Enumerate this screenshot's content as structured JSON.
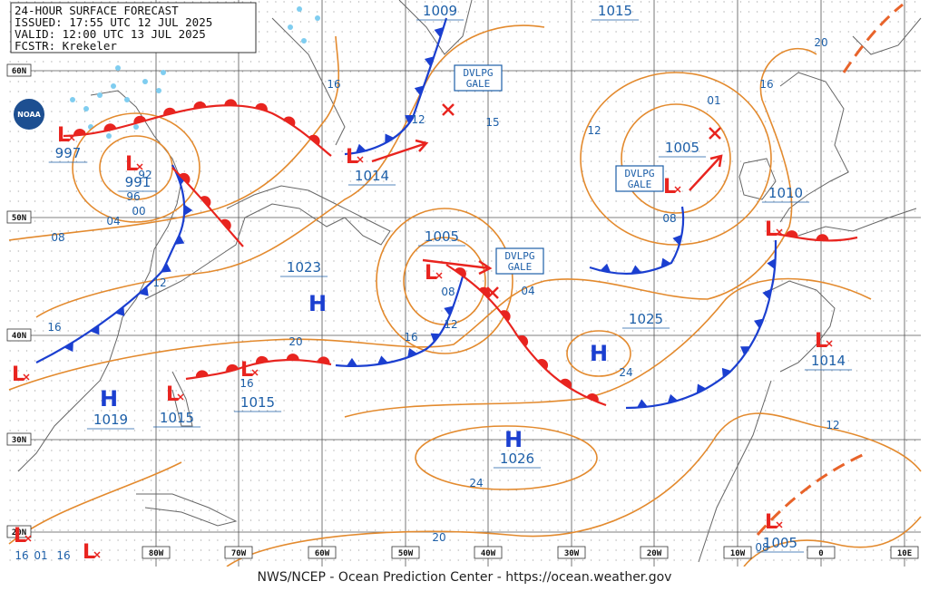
{
  "header": {
    "title": "24-HOUR SURFACE FORECAST",
    "issued": "ISSUED: 17:55 UTC 12 JUL 2025",
    "valid": "VALID: 12:00 UTC 13 JUL 2025",
    "forecaster": "FCSTR: Krekeler"
  },
  "logo": "NOAA",
  "latitude_labels": [
    "60N",
    "50N",
    "40N",
    "30N",
    "20N"
  ],
  "longitude_labels": [
    "80W",
    "70W",
    "60W",
    "50W",
    "40W",
    "30W",
    "20W",
    "10W",
    "0",
    "10E"
  ],
  "highs": [
    {
      "symbol": "H",
      "pressure": "1023"
    },
    {
      "symbol": "H",
      "pressure": "1025"
    },
    {
      "symbol": "H",
      "pressure": "1019"
    },
    {
      "symbol": "H",
      "pressure": "1026"
    }
  ],
  "lows": [
    {
      "symbol": "L",
      "pressure": "997"
    },
    {
      "symbol": "L",
      "pressure": "991"
    },
    {
      "symbol": "L",
      "pressure": "1014"
    },
    {
      "symbol": "L",
      "pressure": "1005"
    },
    {
      "symbol": "L",
      "pressure": "1005"
    },
    {
      "symbol": "L",
      "pressure": "1010"
    },
    {
      "symbol": "L",
      "pressure": "1014"
    },
    {
      "symbol": "L",
      "pressure": "1015"
    },
    {
      "symbol": "L",
      "pressure": "1015"
    },
    {
      "symbol": "L",
      "pressure": "1005"
    },
    {
      "symbol": "L"
    },
    {
      "symbol": "L"
    },
    {
      "symbol": "L"
    }
  ],
  "pressure_labels": [
    "1009",
    "1015"
  ],
  "isobar_labels": [
    "16",
    "15",
    "12",
    "01",
    "16",
    "20",
    "92",
    "96",
    "00",
    "04",
    "08",
    "12",
    "08",
    "12",
    "04",
    "16",
    "20",
    "16",
    "24",
    "16",
    "12",
    "24",
    "20",
    "08",
    "12",
    "08",
    "16",
    "01",
    "16"
  ],
  "warnings": [
    {
      "line1": "DVLPG",
      "line2": "GALE"
    },
    {
      "line1": "DVLPG",
      "line2": "GALE"
    },
    {
      "line1": "DVLPG",
      "line2": "GALE"
    }
  ],
  "footer": "NWS/NCEP - Ocean Prediction Center - https://ocean.weather.gov"
}
